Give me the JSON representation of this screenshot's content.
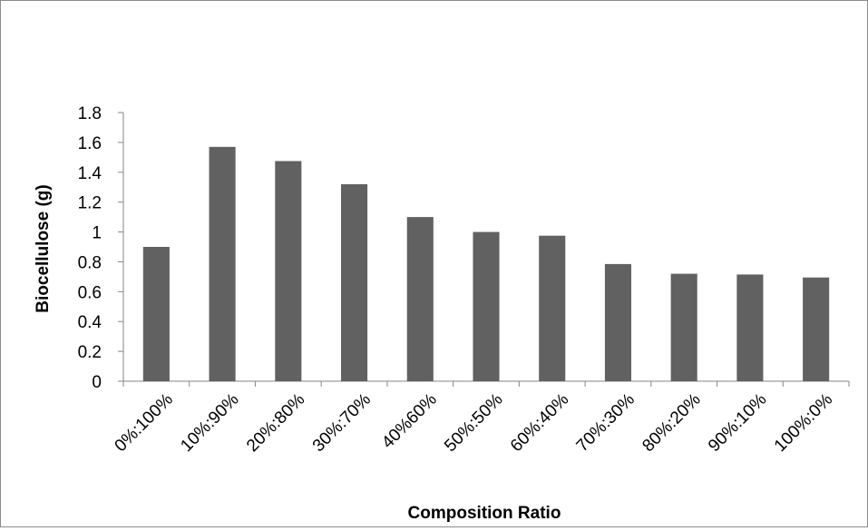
{
  "chart_data": {
    "type": "bar",
    "title": "",
    "xlabel": "Composition Ratio",
    "ylabel": "Biocellulose (g)",
    "categories": [
      "0%:100%",
      "10%:90%",
      "20%:80%",
      "30%:70%",
      "40%60%",
      "50%:50%",
      "60%:40%",
      "70%:30%",
      "80%:20%",
      "90%:10%",
      "100%:0%"
    ],
    "values": [
      0.9,
      1.57,
      1.475,
      1.32,
      1.1,
      1.0,
      0.975,
      0.785,
      0.72,
      0.715,
      0.695
    ],
    "ylim": [
      0,
      1.8
    ],
    "yticks": [
      "0",
      "0.2",
      "0.4",
      "0.6",
      "0.8",
      "1",
      "1.2",
      "1.4",
      "1.6",
      "1.8"
    ],
    "grid": false,
    "legend": "none",
    "bar_color": "#616161",
    "axis_color": "#868686"
  }
}
